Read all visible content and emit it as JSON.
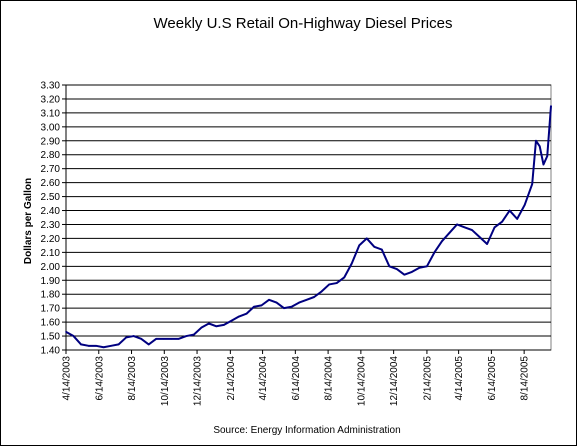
{
  "chart_data": {
    "type": "line",
    "title": "Weekly U.S Retail On-Highway Diesel Prices",
    "xlabel": "",
    "ylabel": "Dollars per Gallon",
    "source": "Source:  Energy Information Administration",
    "ylim": [
      1.4,
      3.3
    ],
    "ytick_labels": [
      "1.40",
      "1.50",
      "1.60",
      "1.70",
      "1.80",
      "1.90",
      "2.00",
      "2.10",
      "2.20",
      "2.30",
      "2.40",
      "2.50",
      "2.60",
      "2.70",
      "2.80",
      "2.90",
      "3.00",
      "3.10",
      "3.20",
      "3.30"
    ],
    "xlim": [
      "2003-04-14",
      "2005-10-03"
    ],
    "xtick_labels": [
      "4/14/2003",
      "6/14/2003",
      "8/14/2003",
      "10/14/2003",
      "12/14/2003",
      "2/14/2004",
      "4/14/2004",
      "6/14/2004",
      "8/14/2004",
      "10/14/2004",
      "12/14/2004",
      "2/14/2005",
      "4/14/2005",
      "6/14/2005",
      "8/14/2005"
    ],
    "grid": true,
    "legend": "none",
    "line_color": "#000080",
    "series": [
      {
        "x": [
          "2003-04-14",
          "2003-04-28",
          "2003-05-12",
          "2003-05-26",
          "2003-06-09",
          "2003-06-23",
          "2003-07-07",
          "2003-07-21",
          "2003-08-04",
          "2003-08-18",
          "2003-09-01",
          "2003-09-15",
          "2003-09-29",
          "2003-10-13",
          "2003-10-27",
          "2003-11-10",
          "2003-11-24",
          "2003-12-08",
          "2003-12-22",
          "2004-01-05",
          "2004-01-19",
          "2004-02-02",
          "2004-02-16",
          "2004-03-01",
          "2004-03-15",
          "2004-03-29",
          "2004-04-12",
          "2004-04-26",
          "2004-05-10",
          "2004-05-24",
          "2004-06-07",
          "2004-06-21",
          "2004-07-05",
          "2004-07-19",
          "2004-08-02",
          "2004-08-16",
          "2004-08-30",
          "2004-09-13",
          "2004-09-27",
          "2004-10-11",
          "2004-10-25",
          "2004-11-08",
          "2004-11-22",
          "2004-12-06",
          "2004-12-20",
          "2005-01-03",
          "2005-01-17",
          "2005-01-31",
          "2005-02-14",
          "2005-02-28",
          "2005-03-14",
          "2005-03-28",
          "2005-04-11",
          "2005-04-25",
          "2005-05-09",
          "2005-05-23",
          "2005-06-06",
          "2005-06-20",
          "2005-07-04",
          "2005-07-18",
          "2005-08-01",
          "2005-08-15",
          "2005-08-29",
          "2005-09-05",
          "2005-09-12",
          "2005-09-19",
          "2005-09-26",
          "2005-10-03"
        ],
        "values": [
          1.53,
          1.5,
          1.44,
          1.43,
          1.43,
          1.42,
          1.43,
          1.44,
          1.49,
          1.5,
          1.48,
          1.44,
          1.48,
          1.48,
          1.48,
          1.48,
          1.5,
          1.51,
          1.56,
          1.59,
          1.57,
          1.58,
          1.61,
          1.64,
          1.66,
          1.71,
          1.72,
          1.76,
          1.74,
          1.7,
          1.71,
          1.74,
          1.76,
          1.78,
          1.82,
          1.87,
          1.88,
          1.92,
          2.02,
          2.15,
          2.2,
          2.14,
          2.12,
          2.0,
          1.98,
          1.94,
          1.96,
          1.99,
          2.0,
          2.1,
          2.18,
          2.24,
          2.3,
          2.28,
          2.26,
          2.21,
          2.16,
          2.28,
          2.32,
          2.4,
          2.34,
          2.44,
          2.59,
          2.9,
          2.86,
          2.73,
          2.79,
          3.15
        ]
      }
    ]
  }
}
